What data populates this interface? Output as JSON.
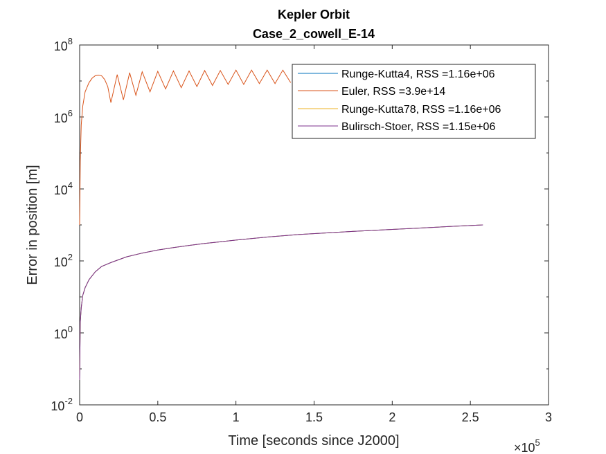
{
  "chart_data": {
    "type": "line",
    "title": "Kepler Orbit",
    "subtitle": "Case_2_cowell_E-14",
    "xlabel": "Time [seconds since J2000]",
    "ylabel": "Error in position [m]",
    "x_multiplier_label": "×10",
    "x_multiplier_exponent": "5",
    "xlim": [
      0,
      300000
    ],
    "ylim": [
      0.01,
      100000000
    ],
    "yscale": "log",
    "grid": false,
    "legend_position": "top-right",
    "x_tick_labels": [
      "0",
      "0.5",
      "1",
      "1.5",
      "2",
      "2.5",
      "3"
    ],
    "x_tick_values": [
      0,
      50000,
      100000,
      150000,
      200000,
      250000,
      300000
    ],
    "y_tick_values": [
      0.01,
      1,
      100,
      10000,
      1000000,
      100000000
    ],
    "y_tick_bases": [
      "10",
      "10",
      "10",
      "10",
      "10",
      "10"
    ],
    "y_tick_exponents": [
      "-2",
      "0",
      "2",
      "4",
      "6",
      "8"
    ],
    "series": [
      {
        "name": "Runge-Kutta4, RSS =1.16e+06",
        "color": "#0072BD",
        "x": [
          0,
          400,
          1000,
          2000,
          3500,
          6000,
          10000,
          14000,
          20000,
          30000,
          40000,
          50000,
          60000,
          70000,
          80000,
          90000,
          100000,
          120000,
          140000,
          160000,
          180000,
          200000,
          220000,
          240000,
          258000
        ],
        "y": [
          0.05,
          2,
          5,
          11,
          18,
          30,
          50,
          70,
          90,
          130,
          165,
          200,
          235,
          270,
          305,
          340,
          380,
          460,
          540,
          610,
          680,
          750,
          830,
          920,
          1000
        ]
      },
      {
        "name": "Euler, RSS =3.9e+14",
        "color": "#D95319",
        "x": [
          0,
          400,
          1000,
          2000,
          3500,
          6000,
          8000,
          10000,
          12000,
          14000,
          16000,
          18000,
          20000,
          24000,
          28000,
          32000,
          36000,
          40000,
          45000,
          50000,
          55000,
          60000,
          65000,
          70000,
          75000,
          80000,
          85000,
          90000,
          95000,
          100000,
          105000,
          110000,
          115000,
          120000,
          125000,
          130000,
          135000
        ],
        "y": [
          1000,
          60000,
          600000,
          2000000,
          5000000,
          9000000,
          12000000,
          14000000,
          14500000,
          14000000,
          11000000,
          7000000,
          2500000,
          15000000,
          3000000,
          17000000,
          4000000,
          18000000,
          5000000,
          18500000,
          6000000,
          19000000,
          6500000,
          19000000,
          7000000,
          19500000,
          7500000,
          19500000,
          8000000,
          20000000,
          8000000,
          20000000,
          8500000,
          20000000,
          8500000,
          20000000,
          9000000
        ]
      },
      {
        "name": "Runge-Kutta78, RSS =1.16e+06",
        "color": "#EDB120",
        "x": [
          0,
          400,
          1000,
          2000,
          3500,
          6000,
          10000,
          14000,
          20000,
          30000,
          40000,
          50000,
          60000,
          70000,
          80000,
          90000,
          100000,
          120000,
          140000,
          160000,
          180000,
          200000,
          220000,
          240000,
          258000
        ],
        "y": [
          0.05,
          2,
          5,
          11,
          18,
          30,
          50,
          70,
          90,
          130,
          165,
          200,
          235,
          270,
          305,
          340,
          380,
          460,
          540,
          610,
          680,
          750,
          830,
          920,
          1000
        ]
      },
      {
        "name": "Bulirsch-Stoer, RSS =1.15e+06",
        "color": "#7E2F8E",
        "x": [
          0,
          400,
          1000,
          2000,
          3500,
          6000,
          10000,
          14000,
          20000,
          30000,
          40000,
          50000,
          60000,
          70000,
          80000,
          90000,
          100000,
          120000,
          140000,
          160000,
          180000,
          200000,
          220000,
          240000,
          258000
        ],
        "y": [
          0.05,
          2,
          5,
          11,
          18,
          30,
          50,
          70,
          90,
          130,
          165,
          200,
          235,
          270,
          305,
          340,
          380,
          460,
          540,
          610,
          680,
          750,
          830,
          920,
          1000
        ]
      }
    ]
  }
}
